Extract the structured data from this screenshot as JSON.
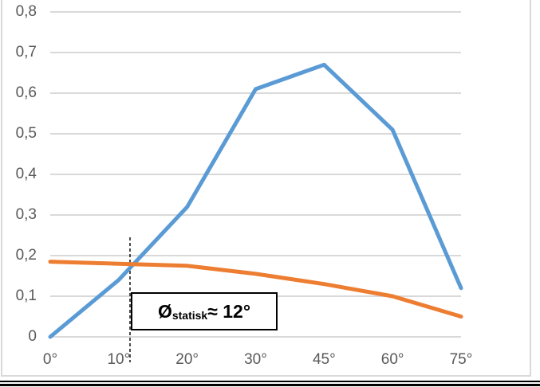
{
  "colors": {
    "blue_series": "#5B9BD5",
    "orange_series": "#ED7D31",
    "gridline": "#D9D9D9",
    "axis_text": "#595959",
    "chart_border": "#D9D9D9",
    "annotation_border": "#000000",
    "marker_line": "#000000"
  },
  "chart_data": {
    "type": "line",
    "title": "",
    "xlabel": "",
    "ylabel": "",
    "categories": [
      "0°",
      "10°",
      "20°",
      "30°",
      "45°",
      "60°",
      "75°"
    ],
    "series": [
      {
        "name": "blue-series",
        "color": "#5B9BD5",
        "values": [
          0,
          0.14,
          0.32,
          0.61,
          0.67,
          0.51,
          0.12
        ]
      },
      {
        "name": "orange-series",
        "color": "#ED7D31",
        "values": [
          0.185,
          0.18,
          0.175,
          0.155,
          0.13,
          0.1,
          0.05
        ]
      }
    ],
    "y_ticks": [
      {
        "v": 0.8,
        "label": "0,8"
      },
      {
        "v": 0.7,
        "label": "0,7"
      },
      {
        "v": 0.6,
        "label": "0,6"
      },
      {
        "v": 0.5,
        "label": "0,5"
      },
      {
        "v": 0.4,
        "label": "0,4"
      },
      {
        "v": 0.3,
        "label": "0,3"
      },
      {
        "v": 0.2,
        "label": "0,2"
      },
      {
        "v": 0.1,
        "label": "0,1"
      },
      {
        "v": 0,
        "label": "0"
      }
    ],
    "ylim": [
      0,
      0.8
    ],
    "grid": true,
    "legend": "none",
    "annotation": {
      "symbol": "Ø",
      "subscript": "statisk",
      "rest": "≈ 12°",
      "marker_degrees": 12
    }
  }
}
